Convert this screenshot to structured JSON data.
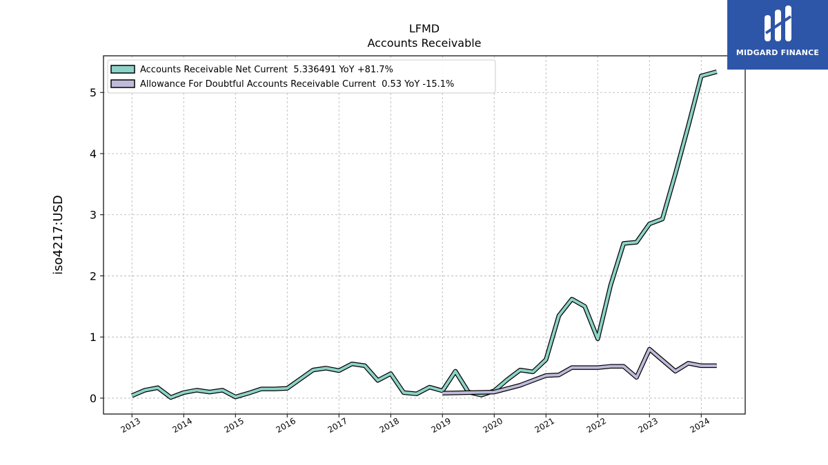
{
  "brand": {
    "name": "MIDGARD FINANCE",
    "bg_color": "#2d56a8"
  },
  "chart_data": {
    "type": "line",
    "title": "LFMD",
    "subtitle": "Accounts Receivable",
    "ylabel": "iso4217:USD",
    "xlabel": "",
    "x_ticks": [
      "2013",
      "2014",
      "2015",
      "2016",
      "2017",
      "2018",
      "2019",
      "2020",
      "2021",
      "2022",
      "2023",
      "2024"
    ],
    "y_ticks": [
      0,
      1,
      2,
      3,
      4,
      5
    ],
    "xlim": [
      2012.45,
      2024.85
    ],
    "ylim": [
      -0.26,
      5.6
    ],
    "grid": true,
    "legend_position": "top-left",
    "series": [
      {
        "name": "Accounts Receivable Net Current  5.336491 YoY +81.7%",
        "color": "#8dd3c7",
        "points": [
          [
            2013.0,
            0.04
          ],
          [
            2013.25,
            0.13
          ],
          [
            2013.5,
            0.17
          ],
          [
            2013.75,
            0.01
          ],
          [
            2014.0,
            0.09
          ],
          [
            2014.25,
            0.13
          ],
          [
            2014.5,
            0.1
          ],
          [
            2014.75,
            0.13
          ],
          [
            2015.0,
            0.02
          ],
          [
            2015.25,
            0.08
          ],
          [
            2015.5,
            0.15
          ],
          [
            2015.75,
            0.15
          ],
          [
            2016.0,
            0.16
          ],
          [
            2016.25,
            0.31
          ],
          [
            2016.5,
            0.46
          ],
          [
            2016.75,
            0.49
          ],
          [
            2017.0,
            0.45
          ],
          [
            2017.25,
            0.56
          ],
          [
            2017.5,
            0.53
          ],
          [
            2017.75,
            0.29
          ],
          [
            2018.0,
            0.4
          ],
          [
            2018.25,
            0.09
          ],
          [
            2018.5,
            0.07
          ],
          [
            2018.75,
            0.18
          ],
          [
            2019.0,
            0.12
          ],
          [
            2019.25,
            0.44
          ],
          [
            2019.5,
            0.1
          ],
          [
            2019.75,
            0.05
          ],
          [
            2020.0,
            0.12
          ],
          [
            2020.25,
            0.3
          ],
          [
            2020.5,
            0.46
          ],
          [
            2020.75,
            0.43
          ],
          [
            2021.0,
            0.63
          ],
          [
            2021.25,
            1.35
          ],
          [
            2021.5,
            1.62
          ],
          [
            2021.75,
            1.5
          ],
          [
            2022.0,
            0.97
          ],
          [
            2022.25,
            1.85
          ],
          [
            2022.5,
            2.53
          ],
          [
            2022.75,
            2.55
          ],
          [
            2023.0,
            2.85
          ],
          [
            2023.25,
            2.93
          ],
          [
            2023.5,
            3.67
          ],
          [
            2023.75,
            4.45
          ],
          [
            2024.0,
            5.27
          ],
          [
            2024.3,
            5.34
          ]
        ]
      },
      {
        "name": "Allowance For Doubtful Accounts Receivable Current  0.53 YoY -15.1%",
        "color": "#bebada",
        "points": [
          [
            2019.0,
            0.08
          ],
          [
            2020.0,
            0.1
          ],
          [
            2020.5,
            0.21
          ],
          [
            2021.0,
            0.37
          ],
          [
            2021.25,
            0.38
          ],
          [
            2021.5,
            0.5
          ],
          [
            2021.75,
            0.5
          ],
          [
            2022.0,
            0.5
          ],
          [
            2022.25,
            0.52
          ],
          [
            2022.5,
            0.52
          ],
          [
            2022.75,
            0.34
          ],
          [
            2023.0,
            0.8
          ],
          [
            2023.25,
            0.62
          ],
          [
            2023.5,
            0.44
          ],
          [
            2023.75,
            0.57
          ],
          [
            2024.0,
            0.53
          ],
          [
            2024.3,
            0.53
          ]
        ]
      }
    ]
  }
}
